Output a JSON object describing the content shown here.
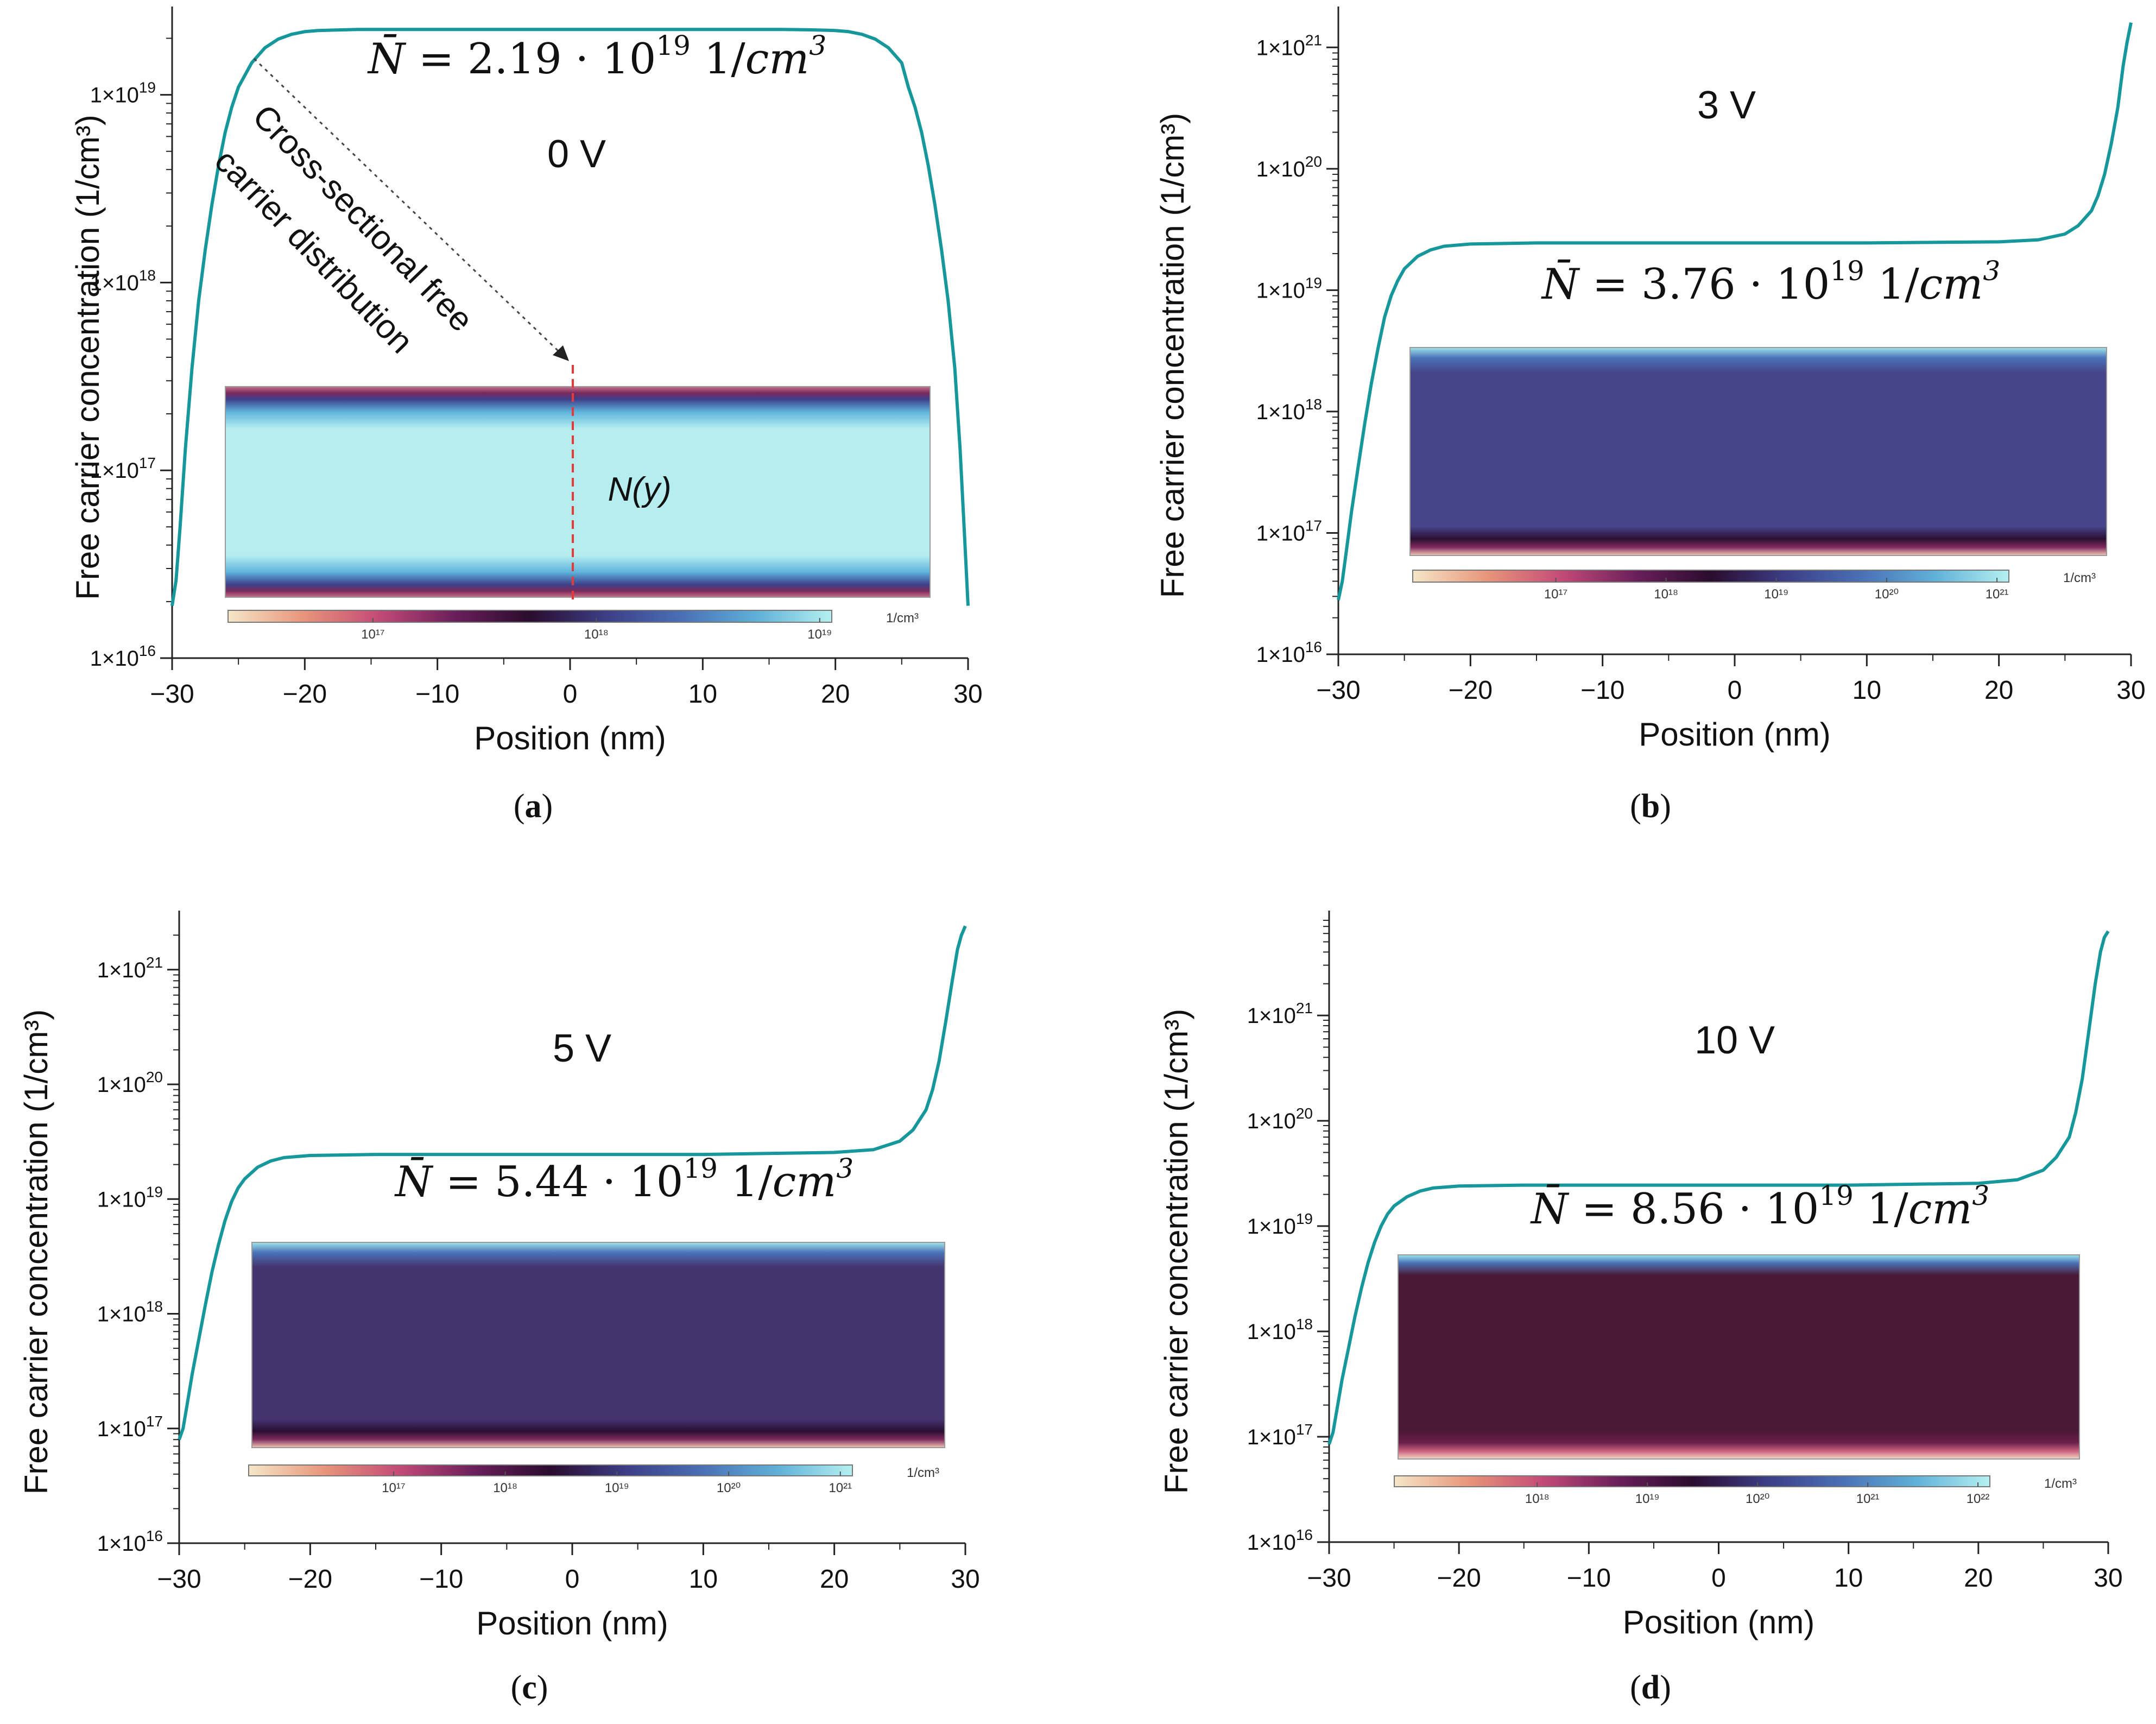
{
  "figure": {
    "panels": [
      {
        "id": "a",
        "label": "a",
        "voltage": "0 V",
        "nbar_value": "2.19",
        "nbar_exp": "19",
        "nbar_unit": "1/cm",
        "nbar_unit_exp": "3",
        "colorbar_unit": "1/cm³",
        "colorbar_ticks": [
          "10¹⁷",
          "10¹⁸",
          "10¹⁹"
        ],
        "annotation_line1": "Cross-sectional free",
        "annotation_line2": "carrier distribution",
        "cut_label": "N(y)"
      },
      {
        "id": "b",
        "label": "b",
        "voltage": "3 V",
        "nbar_value": "3.76",
        "nbar_exp": "19",
        "nbar_unit": "1/cm",
        "nbar_unit_exp": "3",
        "colorbar_unit": "1/cm³",
        "colorbar_ticks": [
          "10¹⁷",
          "10¹⁸",
          "10¹⁹",
          "10²⁰",
          "10²¹"
        ]
      },
      {
        "id": "c",
        "label": "c",
        "voltage": "5 V",
        "nbar_value": "5.44",
        "nbar_exp": "19",
        "nbar_unit": "1/cm",
        "nbar_unit_exp": "3",
        "colorbar_unit": "1/cm³",
        "colorbar_ticks": [
          "10¹⁷",
          "10¹⁸",
          "10¹⁹",
          "10²⁰",
          "10²¹"
        ]
      },
      {
        "id": "d",
        "label": "d",
        "voltage": "10 V",
        "nbar_value": "8.56",
        "nbar_exp": "19",
        "nbar_unit": "1/cm",
        "nbar_unit_exp": "3",
        "colorbar_unit": "1/cm³",
        "colorbar_ticks": [
          "10¹⁸",
          "10¹⁹",
          "10²⁰",
          "10²¹",
          "10²²"
        ]
      }
    ]
  },
  "colors": {
    "curve": "#15979b",
    "cut_line": "#e83838",
    "axis": "#222222",
    "cmap": [
      "#f5e6c8",
      "#e8957a",
      "#c44a77",
      "#6a1f5a",
      "#2a0c2e",
      "#3c3e86",
      "#4a6fb5",
      "#5fb0d8",
      "#b4f0f0"
    ]
  },
  "chart_data": [
    {
      "type": "line",
      "panel": "a",
      "xlabel": "Position (nm)",
      "ylabel": "Free carrier concentration (1/cm³)",
      "xlim": [
        -30,
        30
      ],
      "ylim": [
        1e+16,
        2.8e+19
      ],
      "log_y": true,
      "x_ticks": [
        -30,
        -20,
        -10,
        0,
        10,
        20,
        30
      ],
      "x_tick_labels": [
        "−30",
        "−20",
        "−10",
        "0",
        "10",
        "20",
        "30"
      ],
      "y_ticks": [
        1e+16,
        1e+17,
        1e+18,
        1e+19
      ],
      "y_tick_labels": [
        {
          "m": "1×10",
          "e": "16"
        },
        {
          "m": "1×10",
          "e": "17"
        },
        {
          "m": "1×10",
          "e": "18"
        },
        {
          "m": "1×10",
          "e": "19"
        }
      ],
      "series": [
        {
          "name": "N(y)",
          "x": [
            -30,
            -29.7,
            -29.4,
            -29,
            -28.5,
            -28,
            -27.5,
            -27,
            -26.5,
            -26,
            -25.5,
            -25,
            -24,
            -23,
            -22,
            -21,
            -20,
            -19,
            -18,
            -17,
            -16,
            -14,
            -10,
            -5,
            0,
            5,
            10,
            14,
            16,
            18,
            19,
            20,
            21,
            22,
            23,
            24,
            25,
            25.5,
            26,
            26.5,
            27,
            27.5,
            28,
            28.5,
            29,
            29.4,
            29.7,
            30
          ],
          "y": [
            1.9e+16,
            2.6e+16,
            5e+16,
            1.3e+17,
            3.5e+17,
            8e+17,
            1.5e+18,
            2.6e+18,
            4.2e+18,
            6.3e+18,
            8.6e+18,
            1.1e+19,
            1.48e+19,
            1.78e+19,
            1.98e+19,
            2.1e+19,
            2.17e+19,
            2.2e+19,
            2.21e+19,
            2.22e+19,
            2.23e+19,
            2.23e+19,
            2.23e+19,
            2.23e+19,
            2.23e+19,
            2.23e+19,
            2.23e+19,
            2.23e+19,
            2.23e+19,
            2.22e+19,
            2.21e+19,
            2.2e+19,
            2.17e+19,
            2.1e+19,
            1.98e+19,
            1.78e+19,
            1.48e+19,
            1.1e+19,
            8.6e+18,
            6.3e+18,
            4.2e+18,
            2.6e+18,
            1.5e+18,
            8e+17,
            3.5e+17,
            1.3e+17,
            5e+16,
            1.9e+16
          ]
        }
      ]
    },
    {
      "type": "line",
      "panel": "b",
      "xlabel": "Position (nm)",
      "ylabel": "Free carrier concentration (1/cm³)",
      "xlim": [
        -30,
        30
      ],
      "ylim": [
        1e+16,
        2e+21
      ],
      "log_y": true,
      "x_ticks": [
        -30,
        -20,
        -10,
        0,
        10,
        20,
        30
      ],
      "x_tick_labels": [
        "−30",
        "−20",
        "−10",
        "0",
        "10",
        "20",
        "30"
      ],
      "y_ticks": [
        1e+16,
        1e+17,
        1e+18,
        1e+19,
        1e+20,
        1e+21
      ],
      "y_tick_labels": [
        {
          "m": "1×10",
          "e": "16"
        },
        {
          "m": "1×10",
          "e": "17"
        },
        {
          "m": "1×10",
          "e": "18"
        },
        {
          "m": "1×10",
          "e": "19"
        },
        {
          "m": "1×10",
          "e": "20"
        },
        {
          "m": "1×10",
          "e": "21"
        }
      ],
      "series": [
        {
          "name": "N(y)",
          "x": [
            -30,
            -29.7,
            -29.4,
            -29,
            -28.5,
            -28,
            -27.5,
            -27,
            -26.5,
            -26,
            -25.5,
            -25,
            -24,
            -23,
            -22,
            -20,
            -15,
            -10,
            0,
            10,
            20,
            23,
            25,
            26,
            27,
            27.5,
            28,
            28.5,
            29,
            29.4,
            29.7,
            30
          ],
          "y": [
            2.8e+16,
            4e+16,
            7e+16,
            1.5e+17,
            3.5e+17,
            8e+17,
            1.7e+18,
            3.3e+18,
            6e+18,
            9e+18,
            1.2e+19,
            1.5e+19,
            1.9e+19,
            2.15e+19,
            2.3e+19,
            2.4e+19,
            2.45e+19,
            2.45e+19,
            2.45e+19,
            2.45e+19,
            2.5e+19,
            2.6e+19,
            2.9e+19,
            3.4e+19,
            4.5e+19,
            6e+19,
            9e+19,
            1.6e+20,
            3.2e+20,
            7e+20,
            1.1e+21,
            1.6e+21
          ]
        }
      ]
    },
    {
      "type": "line",
      "panel": "c",
      "xlabel": "Position (nm)",
      "ylabel": "Free carrier concentration (1/cm³)",
      "xlim": [
        -30,
        30
      ],
      "ylim": [
        1e+16,
        3e+21
      ],
      "log_y": true,
      "x_ticks": [
        -30,
        -20,
        -10,
        0,
        10,
        20,
        30
      ],
      "x_tick_labels": [
        "−30",
        "−20",
        "−10",
        "0",
        "10",
        "20",
        "30"
      ],
      "y_ticks": [
        1e+16,
        1e+17,
        1e+18,
        1e+19,
        1e+20,
        1e+21
      ],
      "y_tick_labels": [
        {
          "m": "1×10",
          "e": "16"
        },
        {
          "m": "1×10",
          "e": "17"
        },
        {
          "m": "1×10",
          "e": "18"
        },
        {
          "m": "1×10",
          "e": "19"
        },
        {
          "m": "1×10",
          "e": "20"
        },
        {
          "m": "1×10",
          "e": "21"
        }
      ],
      "series": [
        {
          "name": "N(y)",
          "x": [
            -30,
            -29.7,
            -29.4,
            -29,
            -28.5,
            -28,
            -27.5,
            -27,
            -26.5,
            -26,
            -25.5,
            -25,
            -24,
            -23,
            -22,
            -20,
            -15,
            -10,
            0,
            10,
            20,
            23,
            25,
            26,
            27,
            27.5,
            28,
            28.5,
            29,
            29.4,
            29.7,
            30
          ],
          "y": [
            8e+16,
            1e+17,
            1.6e+17,
            3e+17,
            6e+17,
            1.2e+18,
            2.3e+18,
            4e+18,
            6.5e+18,
            9.5e+18,
            1.25e+19,
            1.5e+19,
            1.9e+19,
            2.15e+19,
            2.3e+19,
            2.4e+19,
            2.45e+19,
            2.45e+19,
            2.45e+19,
            2.45e+19,
            2.55e+19,
            2.7e+19,
            3.2e+19,
            4e+19,
            6e+19,
            9e+19,
            1.6e+20,
            3.5e+20,
            8e+20,
            1.5e+21,
            2e+21,
            2.4e+21
          ]
        }
      ]
    },
    {
      "type": "line",
      "panel": "d",
      "xlabel": "Position (nm)",
      "ylabel": "Free carrier concentration (1/cm³)",
      "xlim": [
        -30,
        30
      ],
      "ylim": [
        1e+16,
        9e+21
      ],
      "log_y": true,
      "x_ticks": [
        -30,
        -20,
        -10,
        0,
        10,
        20,
        30
      ],
      "x_tick_labels": [
        "−30",
        "−20",
        "−10",
        "0",
        "10",
        "20",
        "30"
      ],
      "y_ticks": [
        1e+16,
        1e+17,
        1e+18,
        1e+19,
        1e+20,
        1e+21
      ],
      "y_tick_labels": [
        {
          "m": "1×10",
          "e": "16"
        },
        {
          "m": "1×10",
          "e": "17"
        },
        {
          "m": "1×10",
          "e": "18"
        },
        {
          "m": "1×10",
          "e": "19"
        },
        {
          "m": "1×10",
          "e": "20"
        },
        {
          "m": "1×10",
          "e": "21"
        }
      ],
      "series": [
        {
          "name": "N(y)",
          "x": [
            -30,
            -29.7,
            -29.4,
            -29,
            -28.5,
            -28,
            -27.5,
            -27,
            -26.5,
            -26,
            -25.5,
            -25,
            -24,
            -23,
            -22,
            -20,
            -15,
            -10,
            0,
            10,
            20,
            23,
            25,
            26,
            27,
            27.5,
            28,
            28.5,
            29,
            29.4,
            29.7,
            30
          ],
          "y": [
            8.5e+16,
            1.1e+17,
            1.8e+17,
            3.5e+17,
            7e+17,
            1.4e+18,
            2.6e+18,
            4.5e+18,
            7e+18,
            1e+19,
            1.3e+19,
            1.55e+19,
            1.9e+19,
            2.15e+19,
            2.3e+19,
            2.4e+19,
            2.45e+19,
            2.45e+19,
            2.45e+19,
            2.45e+19,
            2.55e+19,
            2.75e+19,
            3.4e+19,
            4.5e+19,
            7e+19,
            1.2e+20,
            2.5e+20,
            7e+20,
            2e+21,
            4e+21,
            5.5e+21,
            6.3e+21
          ]
        }
      ]
    }
  ]
}
